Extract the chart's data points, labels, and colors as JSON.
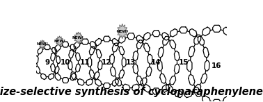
{
  "title_text": "size-selective synthesis of cycloparaphenylenes",
  "title_fontsize": 10.5,
  "title_fontstyle": "italic",
  "title_fontweight": "bold",
  "background_color": "#ffffff",
  "ring_sizes": [
    9,
    10,
    11,
    12,
    13,
    14,
    15,
    16
  ],
  "new_badges": [
    9,
    10,
    11,
    13
  ],
  "line_color": "#000000",
  "line_width": 0.9,
  "number_fontsize": 7.5,
  "fig_width": 3.78,
  "fig_height": 1.47,
  "dpi": 100
}
